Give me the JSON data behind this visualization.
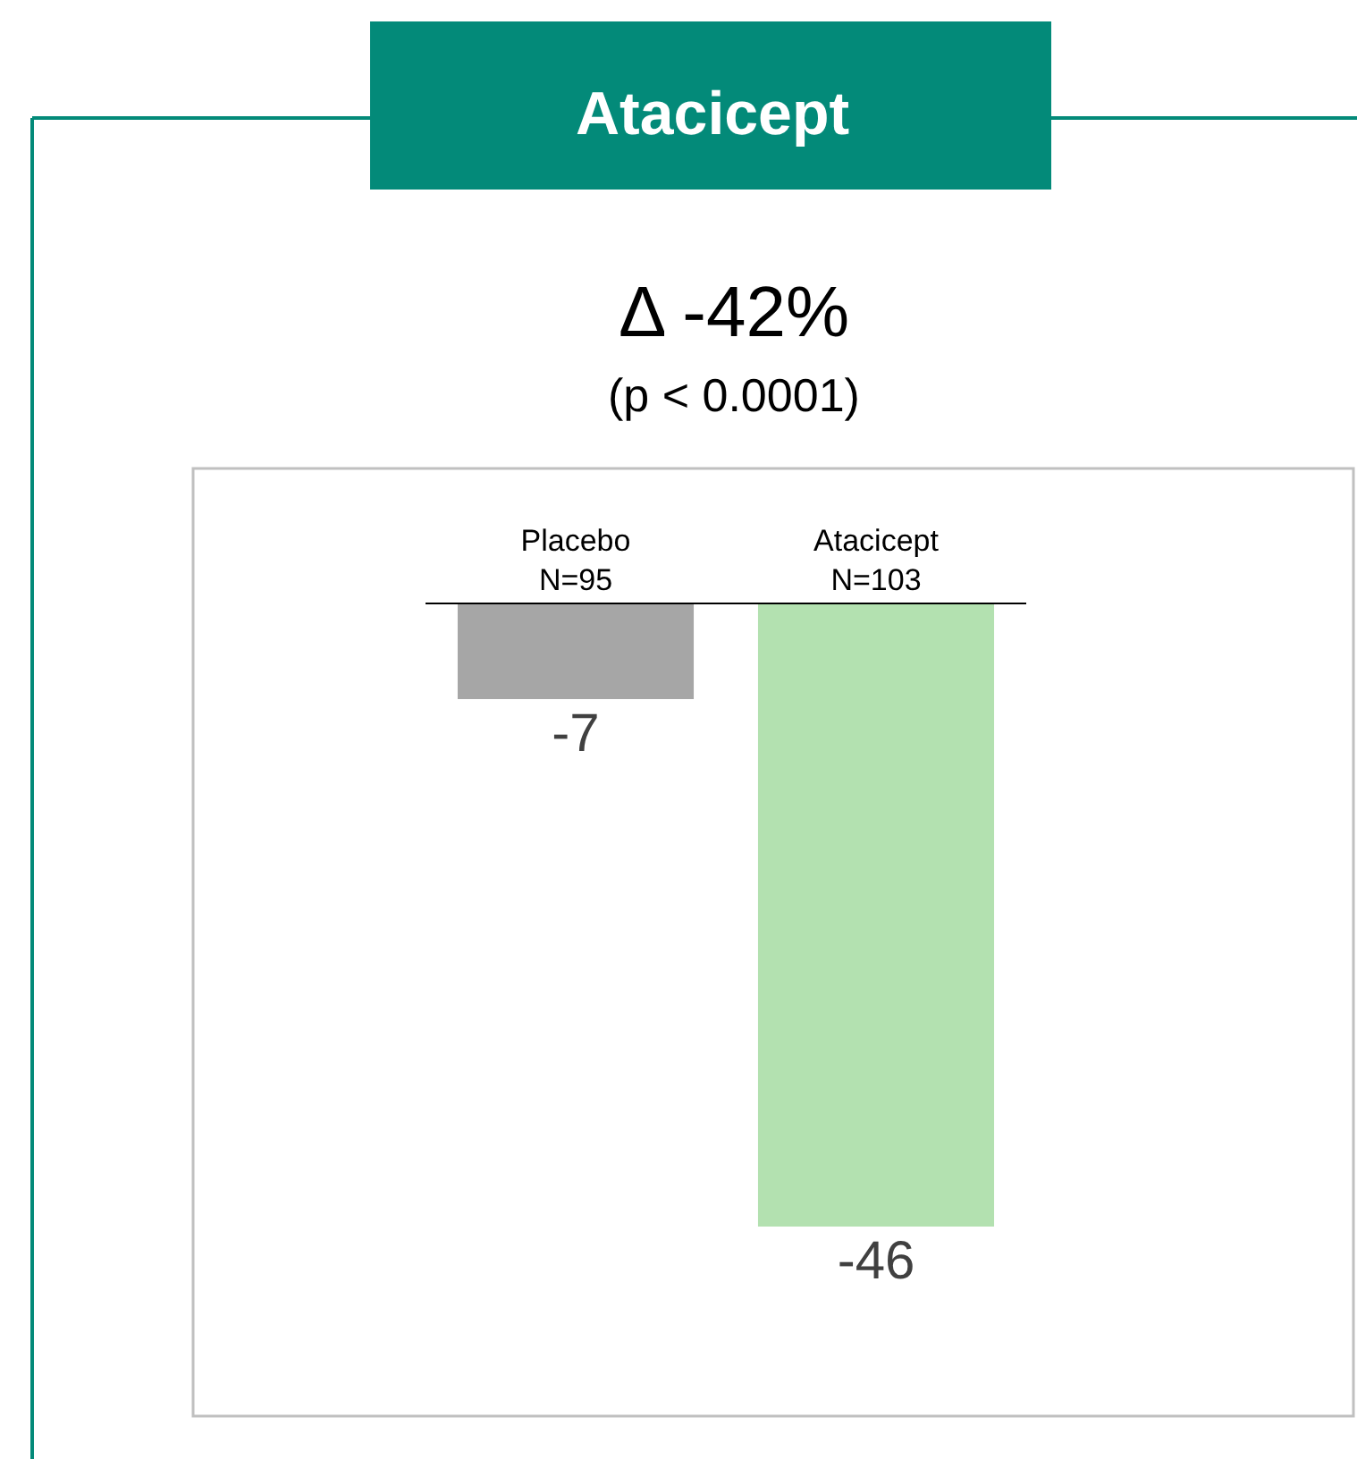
{
  "chart_data": {
    "type": "bar",
    "title": "Atacicept",
    "subtitle": "Δ -42%\n(p < 0.0001)",
    "categories": [
      "Placebo\nN=95",
      "Atacicept\nN=103"
    ],
    "values": [
      -7,
      -46
    ],
    "colors": [
      "#a6a6a6",
      "#b3e1b0"
    ],
    "data_labels": true,
    "tick_labels": "x"
  }
}
